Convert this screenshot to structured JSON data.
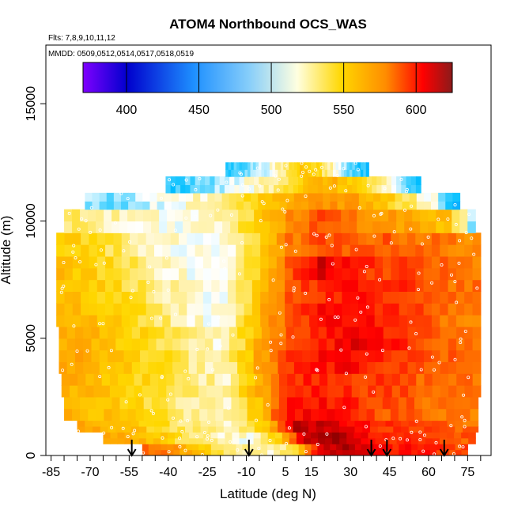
{
  "chart_data": {
    "type": "heatmap",
    "title": "ATOM4 Northbound OCS_WAS",
    "subtitle_flights": "Flts: 7,8,9,10,11,12",
    "subtitle_dates": "MMDD: 0509,0512,0514,0517,0518,0519",
    "xlabel": "Latitude (deg N)",
    "ylabel": "Altitude (m)",
    "xlim": [
      -87,
      84
    ],
    "ylim": [
      0,
      17500
    ],
    "x_ticks": [
      -85,
      -70,
      -55,
      -40,
      -25,
      -10,
      5,
      15,
      30,
      45,
      60,
      75
    ],
    "y_ticks": [
      0,
      5000,
      10000,
      15000
    ],
    "colorbar": {
      "min": 370,
      "max": 625,
      "ticks": [
        400,
        450,
        500,
        550,
        600
      ],
      "colors": [
        "#7f00ff",
        "#0000cd",
        "#1e90ff",
        "#00bfff",
        "#ffffff",
        "#ffd700",
        "#ff8c00",
        "#ff0000",
        "#8b0000"
      ]
    },
    "arrows_lat": [
      -54,
      -9,
      38,
      44,
      66
    ],
    "grid": false,
    "legend": "colorbar-top",
    "altitude_bands": [
      {
        "alt": [
          0,
          500
        ],
        "lon": [
          -50,
          75
        ],
        "values": [
          570,
          560,
          540,
          520,
          510,
          505,
          525,
          600,
          615,
          600,
          585,
          590,
          580,
          575
        ]
      },
      {
        "alt": [
          500,
          1000
        ],
        "lon": [
          -65,
          78
        ],
        "values": [
          555,
          545,
          535,
          515,
          505,
          500,
          530,
          610,
          620,
          595,
          585,
          580,
          575,
          570
        ]
      },
      {
        "alt": [
          1000,
          1500
        ],
        "lon": [
          -75,
          79
        ],
        "values": [
          550,
          545,
          535,
          520,
          510,
          505,
          535,
          612,
          605,
          590,
          580,
          578,
          572,
          568
        ]
      },
      {
        "alt": [
          1500,
          2500
        ],
        "lon": [
          -80,
          79
        ],
        "values": [
          545,
          540,
          530,
          520,
          510,
          505,
          540,
          595,
          590,
          585,
          575,
          570,
          568,
          565
        ]
      },
      {
        "alt": [
          2500,
          3500
        ],
        "lon": [
          -81,
          80
        ],
        "values": [
          548,
          540,
          532,
          522,
          512,
          508,
          545,
          585,
          588,
          582,
          578,
          572,
          568,
          565
        ]
      },
      {
        "alt": [
          3500,
          4500
        ],
        "lon": [
          -82,
          80
        ],
        "values": [
          552,
          545,
          535,
          525,
          512,
          505,
          548,
          580,
          590,
          592,
          580,
          575,
          570,
          568
        ]
      },
      {
        "alt": [
          4500,
          5500
        ],
        "lon": [
          -82,
          80
        ],
        "values": [
          548,
          542,
          533,
          522,
          510,
          502,
          545,
          578,
          585,
          600,
          588,
          578,
          570,
          565
        ]
      },
      {
        "alt": [
          5500,
          6500
        ],
        "lon": [
          -83,
          80
        ],
        "values": [
          545,
          540,
          530,
          518,
          505,
          498,
          540,
          575,
          590,
          595,
          585,
          575,
          568,
          565
        ]
      },
      {
        "alt": [
          6500,
          7500
        ],
        "lon": [
          -83,
          80
        ],
        "values": [
          542,
          535,
          525,
          512,
          500,
          495,
          535,
          572,
          585,
          588,
          585,
          578,
          570,
          565
        ]
      },
      {
        "alt": [
          7500,
          8500
        ],
        "lon": [
          -83,
          80
        ],
        "values": [
          540,
          532,
          520,
          508,
          498,
          495,
          530,
          570,
          605,
          585,
          580,
          575,
          568,
          562
        ]
      },
      {
        "alt": [
          8500,
          9500
        ],
        "lon": [
          -83,
          80
        ],
        "values": [
          535,
          528,
          515,
          505,
          497,
          498,
          525,
          565,
          575,
          570,
          572,
          568,
          565,
          560
        ]
      },
      {
        "alt": [
          9500,
          10500
        ],
        "lon": [
          -80,
          78
        ],
        "values": [
          515,
          510,
          505,
          500,
          500,
          510,
          530,
          560,
          575,
          565,
          558,
          550,
          540,
          470
        ]
      },
      {
        "alt": [
          10500,
          11200
        ],
        "lon": [
          -72,
          72
        ],
        "values": [
          485,
          480,
          490,
          500,
          505,
          520,
          535,
          550,
          560,
          555,
          540,
          520,
          495,
          450
        ]
      },
      {
        "alt": [
          11200,
          11900
        ],
        "lon": [
          -41,
          57
        ],
        "values": [
          470,
          475,
          480,
          490,
          500,
          510,
          520,
          535,
          545,
          540,
          525,
          505,
          480,
          460
        ]
      },
      {
        "alt": [
          11900,
          12500
        ],
        "lon": [
          -18,
          37
        ],
        "values": [
          470,
          475,
          480,
          490,
          500,
          510,
          525,
          540,
          530,
          515,
          500,
          480,
          470,
          465
        ]
      }
    ]
  }
}
